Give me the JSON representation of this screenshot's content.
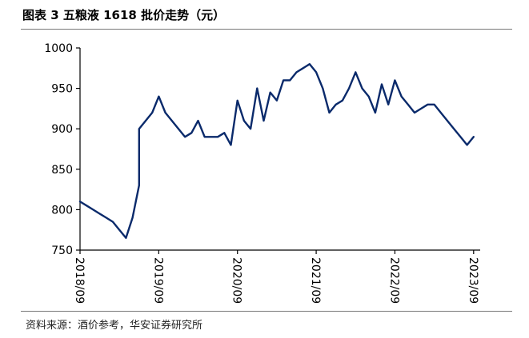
{
  "figure": {
    "title": "图表 3 五粮液 1618 批价走势（元）",
    "source": "资料来源：酒价参考，华安证券研究所"
  },
  "chart_data": {
    "type": "line",
    "ylim": [
      750,
      1000
    ],
    "yticks": [
      750,
      800,
      850,
      900,
      950,
      1000
    ],
    "xticks": [
      "2018/09",
      "2019/09",
      "2020/09",
      "2021/09",
      "2022/09",
      "2023/09"
    ],
    "xlim": [
      "2018/09",
      "2023/10"
    ],
    "grid": false,
    "line_color": "#0a2a6b",
    "series": [
      {
        "values": [
          [
            "2018/09",
            810
          ],
          [
            "2018/10",
            805
          ],
          [
            "2018/11",
            800
          ],
          [
            "2018/12",
            795
          ],
          [
            "2019/01",
            790
          ],
          [
            "2019/02",
            785
          ],
          [
            "2019/03",
            775
          ],
          [
            "2019/04",
            765
          ],
          [
            "2019/05",
            790
          ],
          [
            "2019/06",
            830
          ],
          [
            "2019/06",
            900
          ],
          [
            "2019/07",
            910
          ],
          [
            "2019/08",
            920
          ],
          [
            "2019/09",
            940
          ],
          [
            "2019/10",
            920
          ],
          [
            "2019/11",
            910
          ],
          [
            "2019/12",
            900
          ],
          [
            "2020/01",
            890
          ],
          [
            "2020/02",
            895
          ],
          [
            "2020/03",
            910
          ],
          [
            "2020/04",
            890
          ],
          [
            "2020/05",
            890
          ],
          [
            "2020/06",
            890
          ],
          [
            "2020/07",
            895
          ],
          [
            "2020/08",
            880
          ],
          [
            "2020/09",
            935
          ],
          [
            "2020/10",
            910
          ],
          [
            "2020/11",
            900
          ],
          [
            "2020/12",
            950
          ],
          [
            "2021/01",
            910
          ],
          [
            "2021/02",
            945
          ],
          [
            "2021/03",
            935
          ],
          [
            "2021/04",
            960
          ],
          [
            "2021/05",
            960
          ],
          [
            "2021/06",
            970
          ],
          [
            "2021/07",
            975
          ],
          [
            "2021/08",
            980
          ],
          [
            "2021/09",
            970
          ],
          [
            "2021/10",
            950
          ],
          [
            "2021/11",
            920
          ],
          [
            "2021/12",
            930
          ],
          [
            "2022/01",
            935
          ],
          [
            "2022/02",
            950
          ],
          [
            "2022/03",
            970
          ],
          [
            "2022/04",
            950
          ],
          [
            "2022/05",
            940
          ],
          [
            "2022/06",
            920
          ],
          [
            "2022/07",
            955
          ],
          [
            "2022/08",
            930
          ],
          [
            "2022/09",
            960
          ],
          [
            "2022/10",
            940
          ],
          [
            "2022/11",
            930
          ],
          [
            "2022/12",
            920
          ],
          [
            "2023/01",
            925
          ],
          [
            "2023/02",
            930
          ],
          [
            "2023/03",
            930
          ],
          [
            "2023/04",
            920
          ],
          [
            "2023/05",
            910
          ],
          [
            "2023/06",
            900
          ],
          [
            "2023/07",
            890
          ],
          [
            "2023/08",
            880
          ],
          [
            "2023/09",
            890
          ]
        ]
      }
    ]
  }
}
